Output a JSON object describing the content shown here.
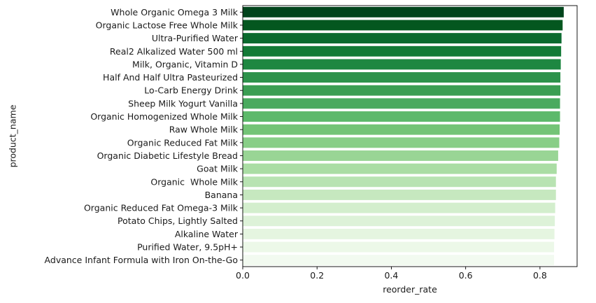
{
  "chart_data": {
    "type": "bar",
    "orientation": "horizontal",
    "xlabel": "reorder_rate",
    "ylabel": "product_name",
    "xlim": [
      0,
      0.9
    ],
    "xticks": [
      0.0,
      0.2,
      0.4,
      0.6,
      0.8
    ],
    "xtick_labels": [
      "0.0",
      "0.2",
      "0.4",
      "0.6",
      "0.8"
    ],
    "grid": false,
    "legend": "none",
    "palette": "Greens_r",
    "categories": [
      "Whole Organic Omega 3 Milk",
      "Organic Lactose Free Whole Milk",
      "Ultra-Purified Water",
      "Real2 Alkalized Water 500 ml",
      "Milk, Organic, Vitamin D",
      "Half And Half Ultra Pasteurized",
      "Lo-Carb Energy Drink",
      "Sheep Milk Yogurt Vanilla",
      "Organic Homogenized Whole Milk",
      "Raw Whole Milk",
      "Organic Reduced Fat Milk",
      "Organic Diabetic Lifestyle Bread",
      "Goat Milk",
      "Organic  Whole Milk",
      "Banana",
      "Organic Reduced Fat Omega-3 Milk",
      "Potato Chips, Lightly Salted",
      "Alkaline Water",
      "Purified Water, 9.5pH+",
      "Advance Infant Formula with Iron On-the-Go"
    ],
    "values": [
      0.864,
      0.861,
      0.858,
      0.857,
      0.856,
      0.855,
      0.855,
      0.854,
      0.854,
      0.853,
      0.852,
      0.849,
      0.845,
      0.843,
      0.843,
      0.841,
      0.84,
      0.839,
      0.838,
      0.838
    ],
    "colors": [
      "#00441b",
      "#04571f",
      "#0a6a2e",
      "#137a36",
      "#1e8741",
      "#2d924b",
      "#3b9e53",
      "#4aaa5f",
      "#5db96b",
      "#73c476",
      "#88ce87",
      "#99d595",
      "#aadda4",
      "#b8e3b2",
      "#c6e8bf",
      "#d3eecd",
      "#ddf2d8",
      "#e5f5e0",
      "#ecf8e8",
      "#f2faf0"
    ]
  }
}
